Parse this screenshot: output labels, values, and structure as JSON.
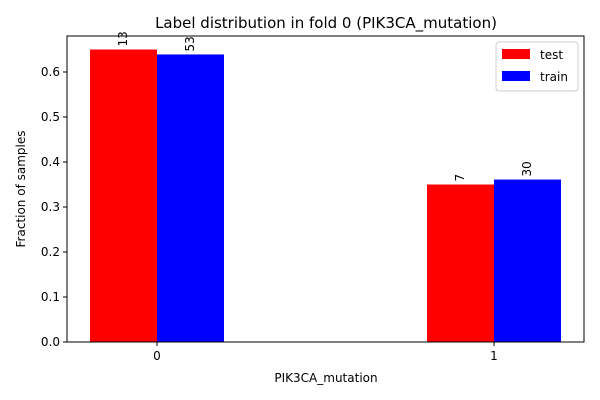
{
  "chart_data": {
    "type": "bar",
    "title": "Label distribution in fold 0 (PIK3CA_mutation)",
    "xlabel": "PIK3CA_mutation",
    "ylabel": "Fraction of samples",
    "categories": [
      "0",
      "1"
    ],
    "ylim": [
      0,
      0.68
    ],
    "yticks": [
      "0.0",
      "0.1",
      "0.2",
      "0.3",
      "0.4",
      "0.5",
      "0.6"
    ],
    "grid": false,
    "legend_position": "top-right",
    "series": [
      {
        "name": "test",
        "color": "#ff0000",
        "values": [
          0.65,
          0.35
        ],
        "labels": [
          "13",
          "7"
        ]
      },
      {
        "name": "train",
        "color": "#0000ff",
        "values": [
          0.639,
          0.361
        ],
        "labels": [
          "53",
          "30"
        ]
      }
    ]
  }
}
